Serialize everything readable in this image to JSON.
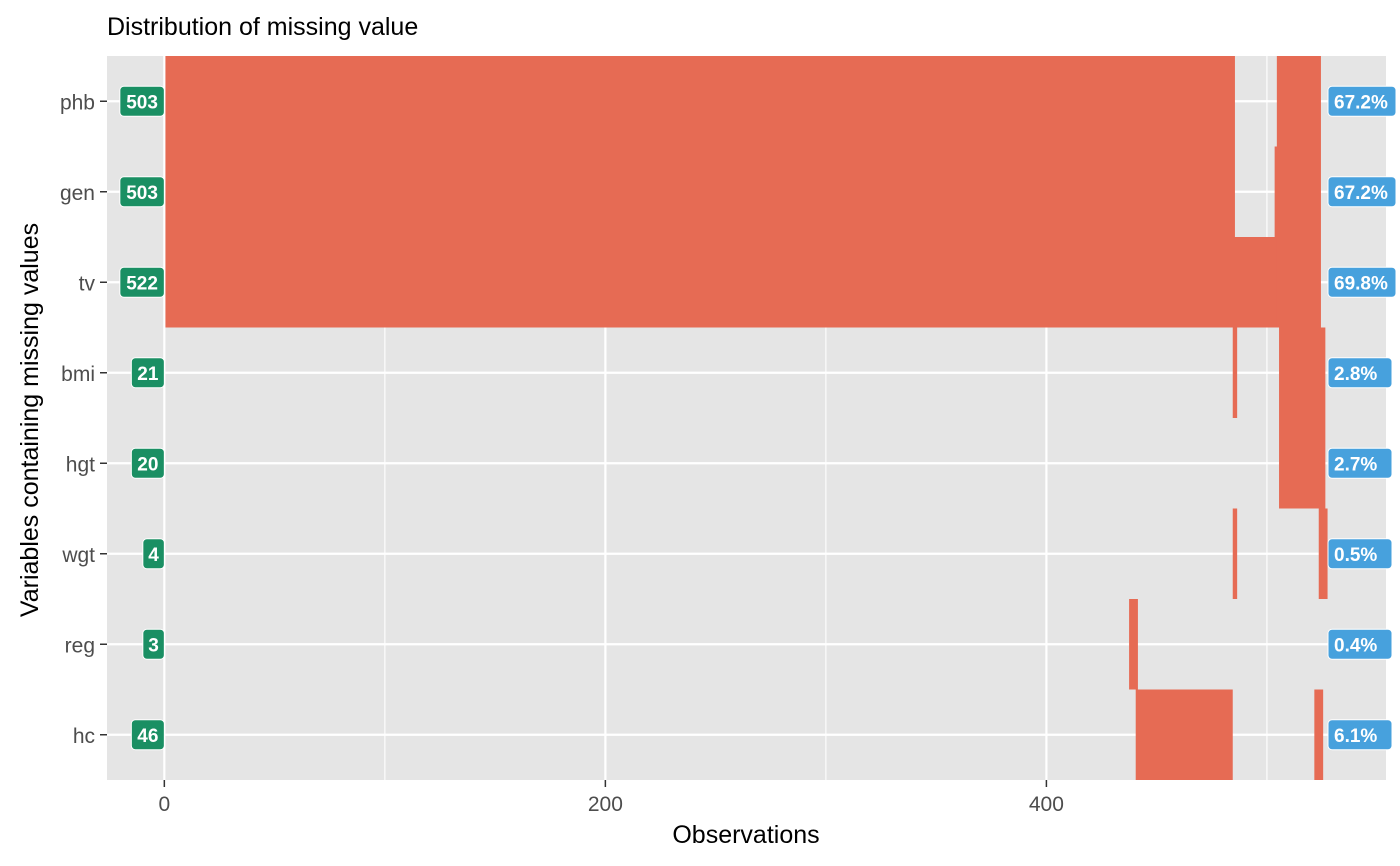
{
  "chart_data": {
    "type": "bar",
    "title": "Distribution of missing value",
    "xlabel": "Observations",
    "ylabel": "Variables containing missing values",
    "xlim": [
      -26,
      554
    ],
    "x_ticks": [
      0,
      200,
      400
    ],
    "x_minor_ticks": [
      100,
      300,
      500
    ],
    "grid": true,
    "variables": [
      "phb",
      "gen",
      "tv",
      "bmi",
      "hgt",
      "wgt",
      "reg",
      "hc"
    ],
    "missing_counts": [
      "503",
      "503",
      "522",
      "21",
      "20",
      "4",
      "3",
      "46"
    ],
    "missing_percent": [
      "67.2%",
      "67.2%",
      "69.8%",
      "2.8%",
      "2.7%",
      "0.5%",
      "0.4%",
      "6.1%"
    ],
    "missing_segments": [
      {
        "variable": "phb",
        "from": 1,
        "to": 485
      },
      {
        "variable": "phb",
        "from": 505,
        "to": 524
      },
      {
        "variable": "gen",
        "from": 1,
        "to": 485
      },
      {
        "variable": "gen",
        "from": 504,
        "to": 524
      },
      {
        "variable": "tv",
        "from": 1,
        "to": 505
      },
      {
        "variable": "tv",
        "from": 505,
        "to": 524
      },
      {
        "variable": "bmi",
        "from": 485,
        "to": 486
      },
      {
        "variable": "bmi",
        "from": 506,
        "to": 526
      },
      {
        "variable": "hgt",
        "from": 506,
        "to": 526
      },
      {
        "variable": "wgt",
        "from": 485,
        "to": 486
      },
      {
        "variable": "wgt",
        "from": 524,
        "to": 527
      },
      {
        "variable": "reg",
        "from": 438,
        "to": 441
      },
      {
        "variable": "hc",
        "from": 441,
        "to": 484
      },
      {
        "variable": "hc",
        "from": 522,
        "to": 525
      }
    ],
    "colors": {
      "panel": "#e5e5e5",
      "grid": "#ffffff",
      "bar": "#e66b54",
      "count_label": "#1a8f63",
      "percent_label": "#47a1dd"
    }
  }
}
